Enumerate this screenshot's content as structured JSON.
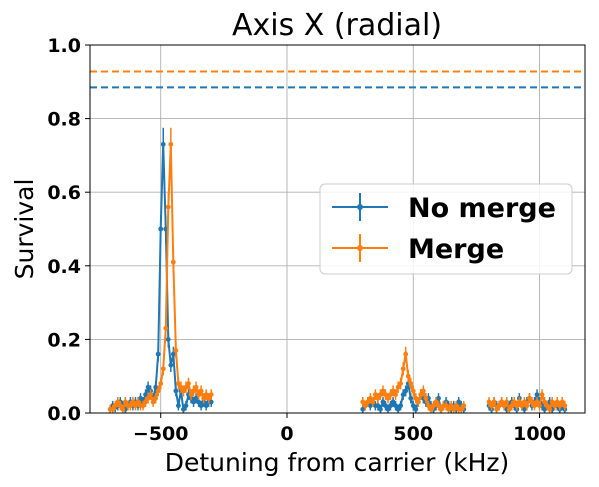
{
  "chart_data": {
    "type": "line",
    "title": "Axis X (radial)",
    "xlabel": "Detuning from carrier (kHz)",
    "ylabel": "Survival",
    "xlim": [
      -780,
      1180
    ],
    "ylim": [
      0,
      1.0
    ],
    "xticks": [
      -500,
      0,
      500,
      1000
    ],
    "xtick_labels": [
      "−500",
      "0",
      "500",
      "1000"
    ],
    "yticks": [
      0.0,
      0.2,
      0.4,
      0.6,
      0.8,
      1.0
    ],
    "ytick_labels": [
      "0.0",
      "0.2",
      "0.4",
      "0.6",
      "0.8",
      "1.0"
    ],
    "grid": true,
    "legend_position": "center-right",
    "series": [
      {
        "name": "No merge",
        "color": "#1f77b4",
        "reference_level": 0.885,
        "segments": [
          {
            "x": [
              -700,
              -690,
              -680,
              -670,
              -660,
              -650,
              -640,
              -630,
              -620,
              -610,
              -600,
              -590,
              -580,
              -570,
              -560,
              -550,
              -540,
              -530,
              -520,
              -510,
              -500,
              -490,
              -480,
              -470,
              -460,
              -450,
              -440,
              -430,
              -420,
              -410,
              -400,
              -390,
              -380,
              -370,
              -360,
              -350,
              -340,
              -330,
              -320,
              -310,
              -300
            ],
            "y": [
              0.01,
              0.02,
              0.015,
              0.02,
              0.03,
              0.02,
              0.01,
              0.02,
              0.03,
              0.02,
              0.03,
              0.02,
              0.04,
              0.03,
              0.05,
              0.07,
              0.06,
              0.04,
              0.07,
              0.16,
              0.5,
              0.73,
              0.5,
              0.2,
              0.13,
              0.16,
              0.06,
              0.02,
              0.06,
              0.01,
              0.02,
              0.05,
              0.04,
              0.03,
              0.04,
              0.03,
              0.02,
              0.03,
              0.02,
              0.03,
              0.03
            ]
          },
          {
            "x": [
              300,
              310,
              320,
              330,
              340,
              350,
              360,
              370,
              380,
              390,
              400,
              410,
              420,
              430,
              440,
              450,
              460,
              470,
              480,
              490,
              500,
              510,
              520,
              530,
              540,
              550,
              560,
              570,
              580,
              590,
              600,
              610,
              620,
              630,
              640,
              650,
              660,
              670,
              680,
              690,
              700
            ],
            "y": [
              0.01,
              0.02,
              0.03,
              0.02,
              0.03,
              0.02,
              0.02,
              0.01,
              0.03,
              0.02,
              0.01,
              0.02,
              0.03,
              0.02,
              0.01,
              0.02,
              0.05,
              0.06,
              0.08,
              0.04,
              0.02,
              0.01,
              0.03,
              0.05,
              0.04,
              0.03,
              0.04,
              0.02,
              0.01,
              0.02,
              0.04,
              0.01,
              0.02,
              0.03,
              0.02,
              0.01,
              0.02,
              0.01,
              0.03,
              0.02,
              0.01
            ]
          },
          {
            "x": [
              800,
              810,
              820,
              830,
              840,
              850,
              860,
              870,
              880,
              890,
              900,
              910,
              920,
              930,
              940,
              950,
              960,
              970,
              980,
              990,
              1000,
              1010,
              1020,
              1030,
              1040,
              1050,
              1060,
              1070,
              1080,
              1090,
              1100
            ],
            "y": [
              0.02,
              0.01,
              0.03,
              0.02,
              0.02,
              0.03,
              0.02,
              0.01,
              0.02,
              0.03,
              0.02,
              0.01,
              0.04,
              0.02,
              0.01,
              0.03,
              0.04,
              0.02,
              0.03,
              0.05,
              0.03,
              0.02,
              0.01,
              0.02,
              0.03,
              0.01,
              0.02,
              0.02,
              0.01,
              0.02,
              0.01
            ]
          }
        ]
      },
      {
        "name": "Merge",
        "color": "#ff7f0e",
        "reference_level": 0.928,
        "segments": [
          {
            "x": [
              -700,
              -690,
              -680,
              -670,
              -660,
              -650,
              -640,
              -630,
              -620,
              -610,
              -600,
              -590,
              -580,
              -570,
              -560,
              -550,
              -540,
              -530,
              -520,
              -510,
              -500,
              -490,
              -480,
              -470,
              -460,
              -450,
              -440,
              -430,
              -420,
              -410,
              -400,
              -390,
              -380,
              -370,
              -360,
              -350,
              -340,
              -330,
              -320,
              -310,
              -300
            ],
            "y": [
              0.01,
              0.01,
              0.02,
              0.03,
              0.02,
              0.01,
              0.03,
              0.02,
              0.02,
              0.03,
              0.02,
              0.03,
              0.02,
              0.02,
              0.03,
              0.04,
              0.05,
              0.03,
              0.04,
              0.06,
              0.08,
              0.12,
              0.23,
              0.56,
              0.73,
              0.41,
              0.17,
              0.08,
              0.07,
              0.06,
              0.07,
              0.08,
              0.05,
              0.06,
              0.07,
              0.05,
              0.06,
              0.04,
              0.05,
              0.04,
              0.05
            ]
          },
          {
            "x": [
              300,
              310,
              320,
              330,
              340,
              350,
              360,
              370,
              380,
              390,
              400,
              410,
              420,
              430,
              440,
              450,
              460,
              470,
              480,
              490,
              500,
              510,
              520,
              530,
              540,
              550,
              560,
              570,
              580,
              590,
              600,
              610,
              620,
              630,
              640,
              650,
              660,
              670,
              680,
              690,
              700
            ],
            "y": [
              0.03,
              0.02,
              0.03,
              0.04,
              0.03,
              0.05,
              0.04,
              0.05,
              0.06,
              0.05,
              0.04,
              0.05,
              0.06,
              0.05,
              0.07,
              0.08,
              0.12,
              0.16,
              0.1,
              0.08,
              0.06,
              0.04,
              0.03,
              0.05,
              0.06,
              0.04,
              0.02,
              0.01,
              0.02,
              0.03,
              0.02,
              0.01,
              0.02,
              0.02,
              0.01,
              0.02,
              0.01,
              0.02,
              0.01,
              0.01,
              0.02
            ]
          },
          {
            "x": [
              800,
              810,
              820,
              830,
              840,
              850,
              860,
              870,
              880,
              890,
              900,
              910,
              920,
              930,
              940,
              950,
              960,
              970,
              980,
              990,
              1000,
              1010,
              1020,
              1030,
              1040,
              1050,
              1060,
              1070,
              1080,
              1090,
              1100
            ],
            "y": [
              0.03,
              0.02,
              0.03,
              0.01,
              0.02,
              0.03,
              0.02,
              0.03,
              0.01,
              0.02,
              0.03,
              0.02,
              0.03,
              0.02,
              0.03,
              0.02,
              0.04,
              0.03,
              0.02,
              0.03,
              0.02,
              0.05,
              0.03,
              0.02,
              0.01,
              0.03,
              0.02,
              0.03,
              0.02,
              0.03,
              0.02
            ]
          }
        ]
      }
    ]
  }
}
